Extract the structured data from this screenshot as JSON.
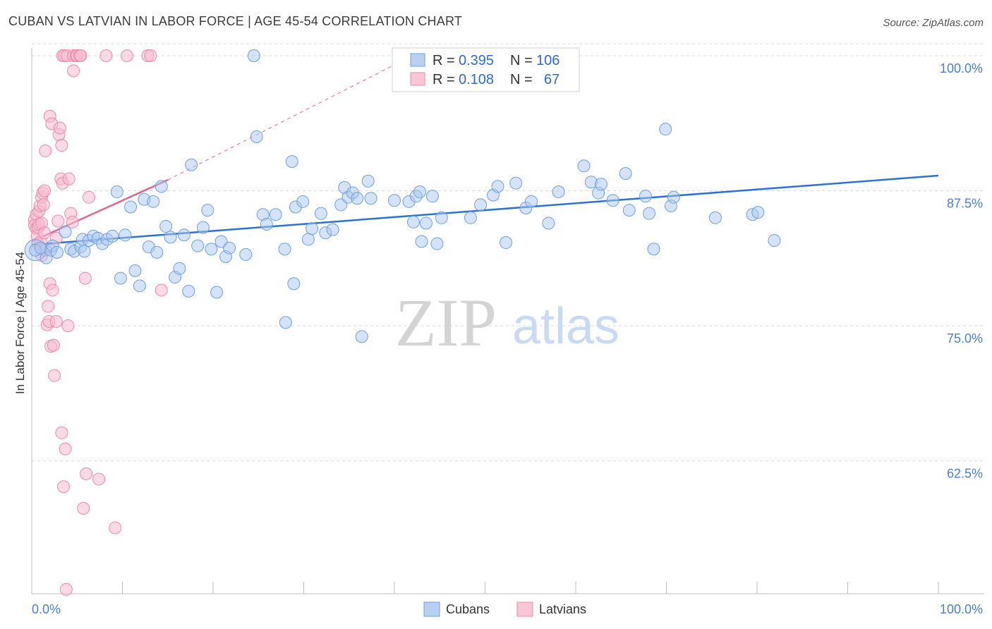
{
  "title": "CUBAN VS LATVIAN IN LABOR FORCE | AGE 45-54 CORRELATION CHART",
  "source": "Source: ZipAtlas.com",
  "colors": {
    "cubans": "#6fa0e0",
    "cubans_fill": "#a9c7f0",
    "cubans_line": "#2d72d2",
    "latvians": "#ee8aab",
    "latvians_fill": "#f7bccf",
    "latvians_line": "#e06890",
    "tick_label": "#4a7fd0",
    "grid": "#d8d8d8"
  },
  "legend": {
    "r_label": "R =",
    "n_label": "N =",
    "rows": [
      {
        "series": "Cubans",
        "r": "0.395",
        "n": "106"
      },
      {
        "series": "Latvians",
        "r": "0.108",
        "n": "67"
      }
    ]
  },
  "watermark": {
    "zip": "ZIP",
    "atlas": "atlas"
  },
  "chart_data": {
    "type": "scatter",
    "title": "CUBAN VS LATVIAN IN LABOR FORCE | AGE 45-54 CORRELATION CHART",
    "xlabel": "",
    "ylabel": "In Labor Force | Age 45-54",
    "xlim": [
      0,
      100
    ],
    "ylim": [
      50.5,
      101.2
    ],
    "x_tick_labels": [
      "0.0%",
      "100.0%"
    ],
    "y_ticks": [
      62.5,
      75.0,
      87.5,
      100.0
    ],
    "y_tick_labels": [
      "62.5%",
      "75.0%",
      "87.5%",
      "100.0%"
    ],
    "grid": true,
    "legend_position": "top-center",
    "series": [
      {
        "name": "Cubans",
        "trend": {
          "x0": 0,
          "y0": 82.5,
          "x1": 100,
          "y1": 88.9
        },
        "points": [
          [
            0.4,
            82.0
          ],
          [
            1.0,
            82.2
          ],
          [
            1.6,
            81.3
          ],
          [
            2.1,
            82.0
          ],
          [
            2.3,
            82.4
          ],
          [
            2.8,
            81.8
          ],
          [
            3.7,
            83.7
          ],
          [
            4.3,
            82.1
          ],
          [
            4.7,
            81.9
          ],
          [
            5.4,
            82.3
          ],
          [
            5.6,
            83.0
          ],
          [
            5.8,
            81.9
          ],
          [
            6.3,
            82.9
          ],
          [
            6.8,
            83.3
          ],
          [
            7.3,
            83.1
          ],
          [
            7.8,
            82.6
          ],
          [
            8.3,
            83.0
          ],
          [
            8.9,
            83.3
          ],
          [
            9.4,
            87.4
          ],
          [
            9.8,
            79.4
          ],
          [
            10.3,
            83.4
          ],
          [
            10.9,
            86.0
          ],
          [
            11.4,
            80.1
          ],
          [
            11.9,
            78.7
          ],
          [
            12.4,
            86.7
          ],
          [
            12.9,
            82.3
          ],
          [
            13.4,
            86.5
          ],
          [
            13.8,
            81.8
          ],
          [
            14.3,
            87.9
          ],
          [
            14.8,
            84.2
          ],
          [
            15.3,
            83.2
          ],
          [
            15.8,
            79.5
          ],
          [
            16.3,
            80.3
          ],
          [
            16.8,
            83.4
          ],
          [
            17.3,
            78.2
          ],
          [
            17.6,
            89.9
          ],
          [
            18.3,
            82.4
          ],
          [
            18.9,
            84.1
          ],
          [
            19.4,
            85.7
          ],
          [
            19.8,
            82.1
          ],
          [
            20.4,
            78.1
          ],
          [
            20.9,
            82.8
          ],
          [
            21.4,
            81.4
          ],
          [
            21.8,
            82.2
          ],
          [
            23.6,
            81.6
          ],
          [
            24.5,
            100.0
          ],
          [
            24.8,
            92.5
          ],
          [
            25.5,
            85.3
          ],
          [
            25.9,
            84.4
          ],
          [
            26.9,
            85.3
          ],
          [
            27.9,
            82.1
          ],
          [
            28.0,
            75.3
          ],
          [
            28.7,
            90.2
          ],
          [
            28.9,
            78.9
          ],
          [
            29.1,
            86.0
          ],
          [
            29.9,
            86.5
          ],
          [
            30.5,
            83.0
          ],
          [
            30.9,
            84.0
          ],
          [
            31.9,
            85.4
          ],
          [
            32.4,
            83.6
          ],
          [
            33.2,
            83.9
          ],
          [
            34.1,
            86.2
          ],
          [
            34.5,
            87.8
          ],
          [
            34.9,
            86.9
          ],
          [
            35.4,
            87.3
          ],
          [
            35.9,
            86.8
          ],
          [
            36.4,
            74.0
          ],
          [
            37.1,
            88.4
          ],
          [
            37.4,
            86.8
          ],
          [
            40.0,
            86.6
          ],
          [
            41.6,
            86.5
          ],
          [
            42.1,
            84.6
          ],
          [
            42.4,
            87.0
          ],
          [
            42.8,
            87.4
          ],
          [
            43.0,
            82.8
          ],
          [
            43.5,
            84.5
          ],
          [
            44.2,
            87.0
          ],
          [
            44.7,
            82.6
          ],
          [
            45.2,
            85.0
          ],
          [
            48.4,
            85.0
          ],
          [
            49.5,
            86.2
          ],
          [
            50.9,
            87.1
          ],
          [
            51.4,
            87.9
          ],
          [
            52.3,
            82.7
          ],
          [
            53.4,
            88.2
          ],
          [
            54.5,
            85.9
          ],
          [
            55.1,
            86.5
          ],
          [
            57.0,
            84.5
          ],
          [
            58.1,
            87.4
          ],
          [
            60.9,
            89.8
          ],
          [
            61.7,
            88.3
          ],
          [
            62.5,
            87.3
          ],
          [
            62.8,
            88.1
          ],
          [
            64.1,
            86.6
          ],
          [
            65.5,
            89.1
          ],
          [
            65.9,
            85.7
          ],
          [
            67.7,
            87.0
          ],
          [
            68.1,
            85.4
          ],
          [
            68.6,
            82.1
          ],
          [
            69.9,
            93.2
          ],
          [
            70.5,
            86.1
          ],
          [
            70.8,
            86.9
          ],
          [
            75.4,
            85.0
          ],
          [
            79.5,
            85.3
          ],
          [
            80.1,
            85.5
          ],
          [
            81.9,
            82.9
          ]
        ]
      },
      {
        "name": "Latvians",
        "trend": {
          "x0": 0,
          "y0": 82.8,
          "x1": 15,
          "y1": 88.5
        },
        "trend_extended": {
          "x0": 15,
          "y0": 88.5,
          "x1": 42,
          "y1": 100.0
        },
        "points": [
          [
            0.3,
            84.8
          ],
          [
            0.3,
            84.3
          ],
          [
            0.5,
            84.0
          ],
          [
            0.5,
            85.3
          ],
          [
            0.6,
            83.3
          ],
          [
            0.7,
            82.6
          ],
          [
            0.7,
            84.1
          ],
          [
            0.8,
            84.4
          ],
          [
            0.8,
            85.6
          ],
          [
            0.9,
            86.1
          ],
          [
            1.0,
            82.8
          ],
          [
            1.1,
            84.5
          ],
          [
            1.1,
            81.5
          ],
          [
            1.1,
            86.9
          ],
          [
            1.2,
            87.3
          ],
          [
            1.3,
            86.2
          ],
          [
            1.4,
            87.5
          ],
          [
            1.4,
            83.6
          ],
          [
            1.4,
            82.0
          ],
          [
            1.5,
            82.0
          ],
          [
            1.5,
            91.2
          ],
          [
            1.7,
            75.1
          ],
          [
            1.8,
            76.8
          ],
          [
            1.9,
            75.4
          ],
          [
            2.0,
            94.4
          ],
          [
            2.0,
            78.9
          ],
          [
            2.1,
            73.1
          ],
          [
            2.2,
            93.7
          ],
          [
            2.3,
            78.3
          ],
          [
            2.4,
            73.2
          ],
          [
            2.5,
            70.4
          ],
          [
            2.7,
            83.1
          ],
          [
            2.7,
            75.4
          ],
          [
            2.9,
            84.7
          ],
          [
            3.0,
            92.7
          ],
          [
            3.1,
            93.3
          ],
          [
            3.2,
            88.6
          ],
          [
            3.3,
            91.7
          ],
          [
            3.3,
            65.1
          ],
          [
            3.4,
            88.2
          ],
          [
            3.4,
            100.0
          ],
          [
            3.5,
            60.1
          ],
          [
            3.6,
            100.0
          ],
          [
            3.7,
            63.6
          ],
          [
            3.8,
            50.6
          ],
          [
            3.9,
            100.0
          ],
          [
            4.0,
            75.0
          ],
          [
            4.1,
            88.6
          ],
          [
            4.3,
            85.4
          ],
          [
            4.5,
            84.6
          ],
          [
            4.6,
            100.0
          ],
          [
            4.6,
            98.6
          ],
          [
            4.9,
            100.0
          ],
          [
            5.0,
            100.0
          ],
          [
            5.3,
            100.0
          ],
          [
            5.4,
            100.0
          ],
          [
            5.7,
            58.1
          ],
          [
            5.9,
            79.4
          ],
          [
            6.0,
            61.3
          ],
          [
            6.3,
            86.9
          ],
          [
            7.4,
            60.8
          ],
          [
            8.2,
            100.0
          ],
          [
            9.2,
            56.3
          ],
          [
            10.5,
            100.0
          ],
          [
            12.8,
            100.0
          ],
          [
            13.1,
            100.0
          ],
          [
            14.3,
            78.3
          ]
        ]
      }
    ]
  },
  "bottom_legend": [
    {
      "label": "Cubans"
    },
    {
      "label": "Latvians"
    }
  ]
}
